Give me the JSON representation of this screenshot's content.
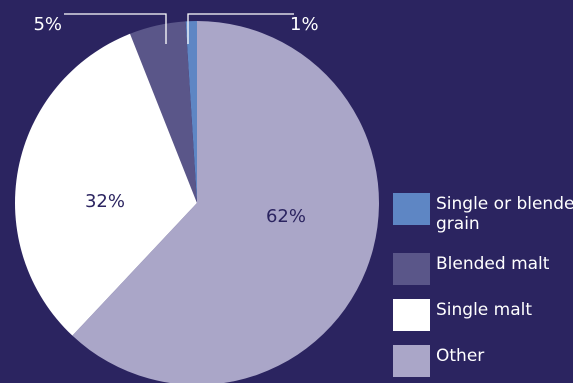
{
  "chart_data": {
    "type": "pie",
    "title": "",
    "slices": [
      {
        "name": "Single or blended grain",
        "value": 1,
        "label": "1%",
        "color": "#5e86c4"
      },
      {
        "name": "Blended malt",
        "value": 5,
        "label": "5%",
        "color": "#5a5689"
      },
      {
        "name": "Single malt",
        "value": 32,
        "label": "32%",
        "color": "#ffffff"
      },
      {
        "name": "Other",
        "value": 62,
        "label": "62%",
        "color": "#aaa6c8"
      }
    ],
    "legend_position": "right",
    "background_color": "#2b2460",
    "label_color_inside": "#2b2460",
    "label_color_outside": "#ffffff"
  }
}
